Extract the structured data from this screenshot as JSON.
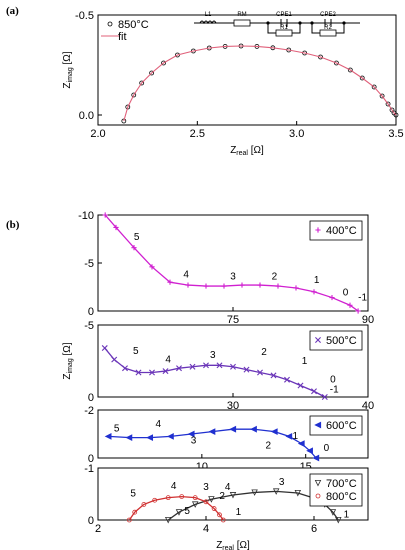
{
  "chart_data": [
    {
      "panel_label": "(a)",
      "type": "scatter",
      "xlabel": "Z",
      "xlabel_sub": "real",
      "xlabel_unit": " [Ω]",
      "ylabel": "Z",
      "ylabel_sub": "imag",
      "ylabel_unit": " [Ω]",
      "xlim": [
        2.0,
        3.5
      ],
      "ylim": [
        0.05,
        -0.5
      ],
      "xticks": [
        2.0,
        2.5,
        3.0,
        3.5
      ],
      "xtick_labels": [
        "2.0",
        "2.5",
        "3.0",
        "3.5"
      ],
      "yticks": [
        -0.5,
        0.0
      ],
      "ytick_labels": [
        "-0.5",
        "0.0"
      ],
      "legend": {
        "placement": "top-left",
        "entries": [
          {
            "label": "850°C",
            "marker": "circle",
            "color": "#000000"
          },
          {
            "label": "fit",
            "marker": "line",
            "color": "#e0607a"
          }
        ]
      },
      "equivalent_circuit": {
        "labels": [
          "L1",
          "RM",
          "CPE1",
          "R1",
          "CPE2",
          "R2"
        ]
      },
      "series": [
        {
          "name": "850°C",
          "x": [
            2.13,
            2.15,
            2.18,
            2.22,
            2.27,
            2.33,
            2.4,
            2.48,
            2.56,
            2.64,
            2.72,
            2.8,
            2.88,
            2.96,
            3.04,
            3.12,
            3.2,
            3.27,
            3.33,
            3.39,
            3.43,
            3.46,
            3.48,
            3.49,
            3.5
          ],
          "y": [
            0.03,
            -0.04,
            -0.1,
            -0.16,
            -0.21,
            -0.26,
            -0.3,
            -0.32,
            -0.335,
            -0.343,
            -0.345,
            -0.343,
            -0.336,
            -0.325,
            -0.31,
            -0.29,
            -0.26,
            -0.225,
            -0.185,
            -0.14,
            -0.095,
            -0.055,
            -0.025,
            -0.01,
            0.0
          ]
        },
        {
          "name": "fit",
          "x": [
            2.13,
            2.15,
            2.18,
            2.22,
            2.27,
            2.33,
            2.4,
            2.48,
            2.56,
            2.64,
            2.72,
            2.8,
            2.88,
            2.96,
            3.04,
            3.12,
            3.2,
            3.27,
            3.33,
            3.39,
            3.43,
            3.46,
            3.48,
            3.49,
            3.5
          ],
          "y": [
            0.03,
            -0.04,
            -0.1,
            -0.16,
            -0.21,
            -0.26,
            -0.3,
            -0.32,
            -0.335,
            -0.343,
            -0.345,
            -0.343,
            -0.336,
            -0.325,
            -0.31,
            -0.29,
            -0.26,
            -0.225,
            -0.185,
            -0.14,
            -0.095,
            -0.055,
            -0.025,
            -0.01,
            0.0
          ]
        }
      ]
    },
    {
      "panel_label": "(b)",
      "type": "line",
      "xlim": [
        60,
        90
      ],
      "ylim": [
        0,
        -10
      ],
      "xticks": [
        75,
        90
      ],
      "xtick_labels": [
        "75",
        "90"
      ],
      "yticks": [
        -10,
        -5,
        0
      ],
      "ytick_labels": [
        "-10",
        "-5",
        "0"
      ],
      "legend": {
        "placement": "top-right",
        "entries": [
          {
            "label": "400°C",
            "marker": "plus",
            "color": "#d020d0"
          }
        ]
      },
      "series": [
        {
          "name": "400°C",
          "x": [
            60.8,
            62,
            64,
            66,
            68,
            70,
            72,
            74,
            76,
            78,
            80,
            82,
            84,
            86,
            88,
            88.9
          ],
          "y": [
            -10,
            -8.7,
            -6.6,
            -4.6,
            -3.0,
            -2.7,
            -2.6,
            -2.6,
            -2.7,
            -2.7,
            -2.6,
            -2.4,
            -2.0,
            -1.4,
            -0.6,
            0.0
          ]
        }
      ],
      "annotations": [
        {
          "text": "5",
          "x": 64.3,
          "y": -7.4
        },
        {
          "text": "4",
          "x": 69.8,
          "y": -3.5
        },
        {
          "text": "3",
          "x": 75.0,
          "y": -3.3
        },
        {
          "text": "2",
          "x": 79.6,
          "y": -3.3
        },
        {
          "text": "1",
          "x": 84.3,
          "y": -2.9
        },
        {
          "text": "0",
          "x": 87.5,
          "y": -1.6
        },
        {
          "text": "-1",
          "x": 89.4,
          "y": -1.1
        }
      ]
    },
    {
      "type": "line",
      "ylabel": "Z",
      "ylabel_sub": "imag",
      "ylabel_unit": " [Ω]",
      "xlim": [
        20,
        40
      ],
      "ylim": [
        0,
        -5
      ],
      "xticks": [
        30,
        40
      ],
      "xtick_labels": [
        "30",
        "40"
      ],
      "yticks": [
        -5,
        0
      ],
      "ytick_labels": [
        "-5",
        "0"
      ],
      "legend": {
        "placement": "top-right",
        "entries": [
          {
            "label": "500°C",
            "marker": "x",
            "color": "#6a35b8"
          }
        ]
      },
      "series": [
        {
          "name": "500°C",
          "x": [
            20.5,
            21.2,
            22,
            23,
            24,
            25,
            26,
            27,
            28,
            29,
            30,
            31,
            32,
            33,
            34,
            35,
            36,
            36.8
          ],
          "y": [
            -3.4,
            -2.6,
            -2.0,
            -1.7,
            -1.7,
            -1.8,
            -2.0,
            -2.1,
            -2.2,
            -2.2,
            -2.1,
            -1.9,
            -1.7,
            -1.5,
            -1.2,
            -0.8,
            -0.4,
            0.0
          ]
        }
      ],
      "annotations": [
        {
          "text": "5",
          "x": 22.8,
          "y": -3.0
        },
        {
          "text": "4",
          "x": 25.2,
          "y": -2.4
        },
        {
          "text": "3",
          "x": 28.5,
          "y": -2.7
        },
        {
          "text": "2",
          "x": 32.3,
          "y": -2.9
        },
        {
          "text": "1",
          "x": 35.3,
          "y": -2.3
        },
        {
          "text": "0",
          "x": 37.4,
          "y": -1.0
        },
        {
          "text": "-1",
          "x": 37.5,
          "y": -0.3
        }
      ]
    },
    {
      "type": "line",
      "xlim": [
        5,
        18
      ],
      "ylim": [
        0,
        -2
      ],
      "xticks": [
        10,
        15
      ],
      "xtick_labels": [
        "10",
        "15"
      ],
      "yticks": [
        -2,
        0
      ],
      "ytick_labels": [
        "-2",
        "0"
      ],
      "legend": {
        "placement": "top-right",
        "entries": [
          {
            "label": "600°C",
            "marker": "triangle-left",
            "color": "#2030d0"
          }
        ]
      },
      "series": [
        {
          "name": "600°C",
          "x": [
            5.5,
            6.5,
            7.5,
            8.5,
            9.5,
            10.5,
            11.5,
            12.5,
            13.5,
            14.2,
            14.8,
            15.2,
            15.5
          ],
          "y": [
            -0.9,
            -0.85,
            -0.85,
            -0.9,
            -1.0,
            -1.1,
            -1.2,
            -1.2,
            -1.1,
            -0.9,
            -0.6,
            -0.3,
            0.0
          ]
        }
      ],
      "annotations": [
        {
          "text": "5",
          "x": 5.9,
          "y": -1.1
        },
        {
          "text": "4",
          "x": 7.9,
          "y": -1.3
        },
        {
          "text": "3",
          "x": 9.6,
          "y": -0.6
        },
        {
          "text": "2",
          "x": 13.2,
          "y": -0.4
        },
        {
          "text": "1",
          "x": 14.5,
          "y": -0.8
        },
        {
          "text": "0",
          "x": 16.0,
          "y": -0.3
        }
      ]
    },
    {
      "type": "line",
      "xlabel": "Z",
      "xlabel_sub": "real",
      "xlabel_unit": " [Ω]",
      "xlim": [
        2,
        7
      ],
      "ylim": [
        0,
        -1
      ],
      "xticks": [
        2,
        4,
        6
      ],
      "xtick_labels": [
        "2",
        "4",
        "6"
      ],
      "yticks": [
        -1,
        0
      ],
      "ytick_labels": [
        "-1",
        "0"
      ],
      "legend": {
        "placement": "top-right",
        "entries": [
          {
            "label": "700°C",
            "marker": "triangle-down",
            "color": "#303030"
          },
          {
            "label": "800°C",
            "marker": "circle",
            "color": "#d03030"
          }
        ]
      },
      "series": [
        {
          "name": "700°C",
          "x": [
            3.3,
            3.5,
            3.8,
            4.1,
            4.5,
            4.9,
            5.3,
            5.7,
            6.0,
            6.2,
            6.35,
            6.45
          ],
          "y": [
            0.0,
            -0.15,
            -0.3,
            -0.4,
            -0.48,
            -0.53,
            -0.55,
            -0.52,
            -0.42,
            -0.3,
            -0.15,
            0.0
          ]
        },
        {
          "name": "800°C",
          "x": [
            2.58,
            2.68,
            2.85,
            3.05,
            3.3,
            3.55,
            3.8,
            4.0,
            4.15,
            4.25,
            4.32
          ],
          "y": [
            0.0,
            -0.15,
            -0.3,
            -0.38,
            -0.43,
            -0.45,
            -0.43,
            -0.35,
            -0.22,
            -0.1,
            0.0
          ]
        }
      ],
      "annotations": [
        {
          "text": "5",
          "x": 2.65,
          "y": -0.45
        },
        {
          "text": "4",
          "x": 3.4,
          "y": -0.6
        },
        {
          "text": "3",
          "x": 4.0,
          "y": -0.58
        },
        {
          "text": "2",
          "x": 4.3,
          "y": -0.4
        },
        {
          "text": "1",
          "x": 4.6,
          "y": -0.1
        },
        {
          "text": "5",
          "x": 3.65,
          "y": -0.12
        },
        {
          "text": "4",
          "x": 4.4,
          "y": -0.58
        },
        {
          "text": "3",
          "x": 5.4,
          "y": -0.67
        },
        {
          "text": "2",
          "x": 6.1,
          "y": -0.48
        },
        {
          "text": "1",
          "x": 6.6,
          "y": -0.05
        }
      ]
    }
  ],
  "colors": {
    "fit": "#e0607a",
    "400": "#d020d0",
    "500": "#6a35b8",
    "600": "#2030d0",
    "700": "#303030",
    "800": "#d03030"
  }
}
